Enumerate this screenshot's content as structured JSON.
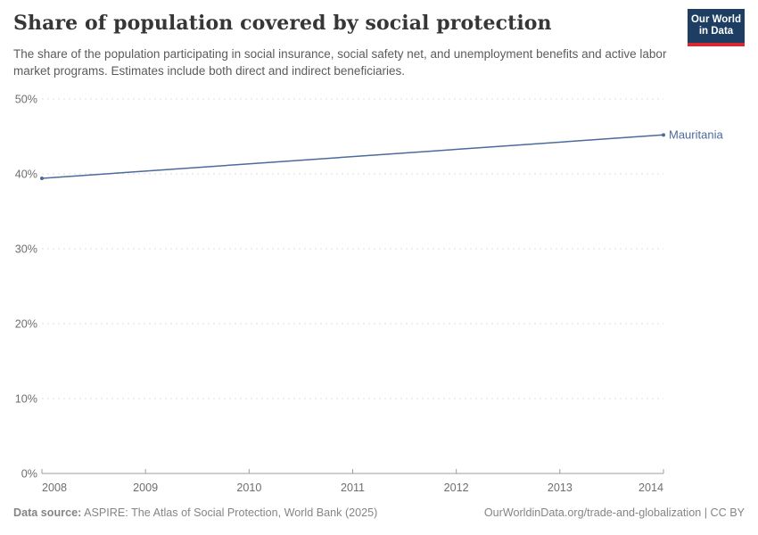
{
  "header": {
    "title": "Share of population covered by social protection",
    "subtitle": "The share of the population participating in social insurance, social safety net, and unemployment benefits and active labor market programs. Estimates include both direct and indirect beneficiaries."
  },
  "logo": {
    "line1": "Our World",
    "line2": "in Data",
    "bg_color": "#1d3d63",
    "accent_color": "#d7292f"
  },
  "chart_data": {
    "type": "line",
    "title": "Share of population covered by social protection",
    "xlabel": "",
    "ylabel": "",
    "xlim": [
      2008,
      2014
    ],
    "ylim": [
      0,
      50
    ],
    "x_ticks": [
      2008,
      2009,
      2010,
      2011,
      2012,
      2013,
      2014
    ],
    "y_ticks": [
      0,
      10,
      20,
      30,
      40,
      50
    ],
    "y_tick_suffix": "%",
    "grid": "horizontal dashed",
    "legend_position": "line-end label",
    "series": [
      {
        "name": "Mauritania",
        "color": "#4c6a9c",
        "points": [
          {
            "x": 2008,
            "y": 39.4
          },
          {
            "x": 2014,
            "y": 45.2
          }
        ]
      }
    ]
  },
  "footer": {
    "data_source_label": "Data source:",
    "data_source_text": "ASPIRE: The Atlas of Social Protection, World Bank (2025)",
    "url": "OurWorldinData.org/trade-and-globalization",
    "separator": "|",
    "license": "CC BY"
  }
}
